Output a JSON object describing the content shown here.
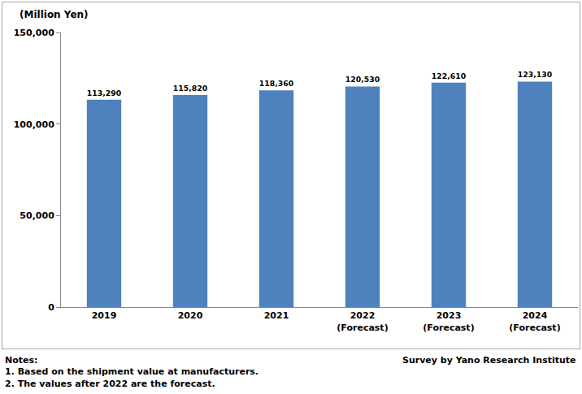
{
  "chart_data": {
    "type": "bar",
    "ylabel": "(Million Yen)",
    "categories": [
      "2019",
      "2020",
      "2021",
      "2022\n(Forecast)",
      "2023\n(Forecast)",
      "2024\n(Forecast)"
    ],
    "values": [
      113290,
      115820,
      118360,
      120530,
      122610,
      123130
    ],
    "value_labels": [
      "113,290",
      "115,820",
      "118,360",
      "120,530",
      "122,610",
      "123,130"
    ],
    "data_labels": true,
    "color": "#4f81bd",
    "ylim": [
      0,
      150000
    ],
    "yticks": [
      0,
      {
        "value": 50000,
        "label": "50,000"
      },
      {
        "value": 100000,
        "label": "100,000"
      },
      {
        "value": 150000,
        "label": "150,000"
      }
    ],
    "grid": false,
    "annotations": [
      "Notes:",
      "1. Based on the shipment value at manufacturers.",
      "2. The values after 2022 are the forecast.",
      "Survey by Yano Research Institute"
    ]
  }
}
